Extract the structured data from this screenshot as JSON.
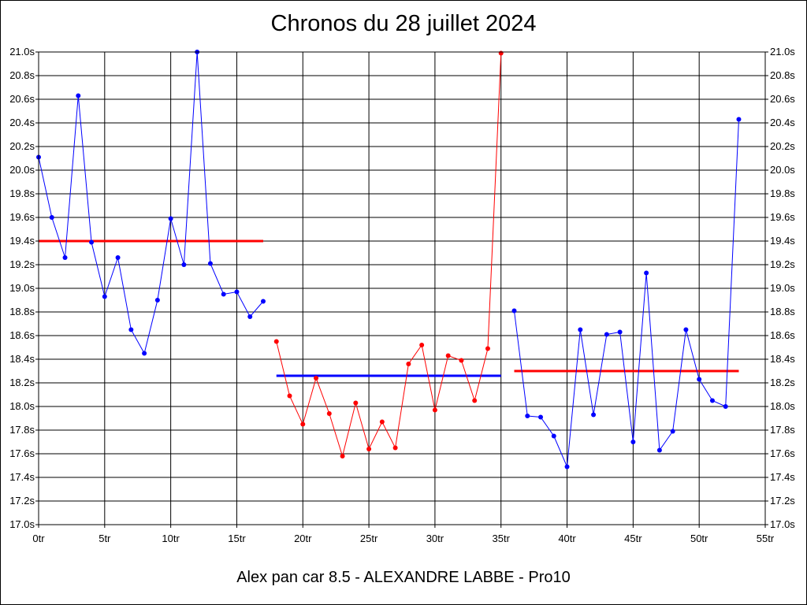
{
  "chart_data": {
    "type": "line",
    "title": "Chronos du 28 juillet 2024",
    "subtitle": "Alex pan car 8.5 - ALEXANDRE LABBE - Pro10",
    "xlim": [
      0,
      55
    ],
    "ylim": [
      17.0,
      21.0
    ],
    "x_ticks": [
      {
        "value": 0,
        "label": "0tr"
      },
      {
        "value": 5,
        "label": "5tr"
      },
      {
        "value": 10,
        "label": "10tr"
      },
      {
        "value": 15,
        "label": "15tr"
      },
      {
        "value": 20,
        "label": "20tr"
      },
      {
        "value": 25,
        "label": "25tr"
      },
      {
        "value": 30,
        "label": "30tr"
      },
      {
        "value": 35,
        "label": "35tr"
      },
      {
        "value": 40,
        "label": "40tr"
      },
      {
        "value": 45,
        "label": "45tr"
      },
      {
        "value": 50,
        "label": "50tr"
      },
      {
        "value": 55,
        "label": "55tr"
      }
    ],
    "y_ticks": [
      {
        "value": 17.0,
        "label": "17.0s"
      },
      {
        "value": 17.2,
        "label": "17.2s"
      },
      {
        "value": 17.4,
        "label": "17.4s"
      },
      {
        "value": 17.6,
        "label": "17.6s"
      },
      {
        "value": 17.8,
        "label": "17.8s"
      },
      {
        "value": 18.0,
        "label": "18.0s"
      },
      {
        "value": 18.2,
        "label": "18.2s"
      },
      {
        "value": 18.4,
        "label": "18.4s"
      },
      {
        "value": 18.6,
        "label": "18.6s"
      },
      {
        "value": 18.8,
        "label": "18.8s"
      },
      {
        "value": 19.0,
        "label": "19.0s"
      },
      {
        "value": 19.2,
        "label": "19.2s"
      },
      {
        "value": 19.4,
        "label": "19.4s"
      },
      {
        "value": 19.6,
        "label": "19.6s"
      },
      {
        "value": 19.8,
        "label": "19.8s"
      },
      {
        "value": 20.0,
        "label": "20.0s"
      },
      {
        "value": 20.2,
        "label": "20.2s"
      },
      {
        "value": 20.4,
        "label": "20.4s"
      },
      {
        "value": 20.6,
        "label": "20.6s"
      },
      {
        "value": 20.8,
        "label": "20.8s"
      },
      {
        "value": 21.0,
        "label": "21.0s"
      }
    ],
    "grid": true,
    "y_axis_labels_both_sides": true,
    "series": [
      {
        "color": "#0000ff",
        "x": [
          0,
          1,
          2,
          3,
          4,
          5,
          6,
          7,
          8,
          9,
          10,
          11,
          12,
          13,
          14,
          15,
          16,
          17
        ],
        "y": [
          20.11,
          19.6,
          19.26,
          20.63,
          19.39,
          18.93,
          19.26,
          18.65,
          18.45,
          18.9,
          19.59,
          19.2,
          21.0,
          19.21,
          18.95,
          18.97,
          18.76,
          18.89
        ]
      },
      {
        "color": "#ff0000",
        "x": [
          18,
          19,
          20,
          21,
          22,
          23,
          24,
          25,
          26,
          27,
          28,
          29,
          30,
          31,
          32,
          33,
          34,
          35
        ],
        "y": [
          18.55,
          18.09,
          17.85,
          18.24,
          17.94,
          17.58,
          18.03,
          17.64,
          17.87,
          17.65,
          18.36,
          18.52,
          17.97,
          18.43,
          18.39,
          18.05,
          18.49,
          20.99
        ]
      },
      {
        "color": "#0000ff",
        "x": [
          36,
          37,
          38,
          39,
          40,
          41,
          42,
          43,
          44,
          45,
          46,
          47,
          48,
          49,
          50,
          51,
          52,
          53
        ],
        "y": [
          18.81,
          17.92,
          17.91,
          17.75,
          17.49,
          18.65,
          17.93,
          18.61,
          18.63,
          17.7,
          19.13,
          17.63,
          17.79,
          18.65,
          18.23,
          18.05,
          18.0,
          20.43
        ]
      }
    ],
    "averages": [
      {
        "color": "#ff0000",
        "x": [
          0,
          17
        ],
        "y": 19.4
      },
      {
        "color": "#0000ff",
        "x": [
          18,
          35
        ],
        "y": 18.26
      },
      {
        "color": "#ff0000",
        "x": [
          36,
          53
        ],
        "y": 18.3
      }
    ]
  }
}
